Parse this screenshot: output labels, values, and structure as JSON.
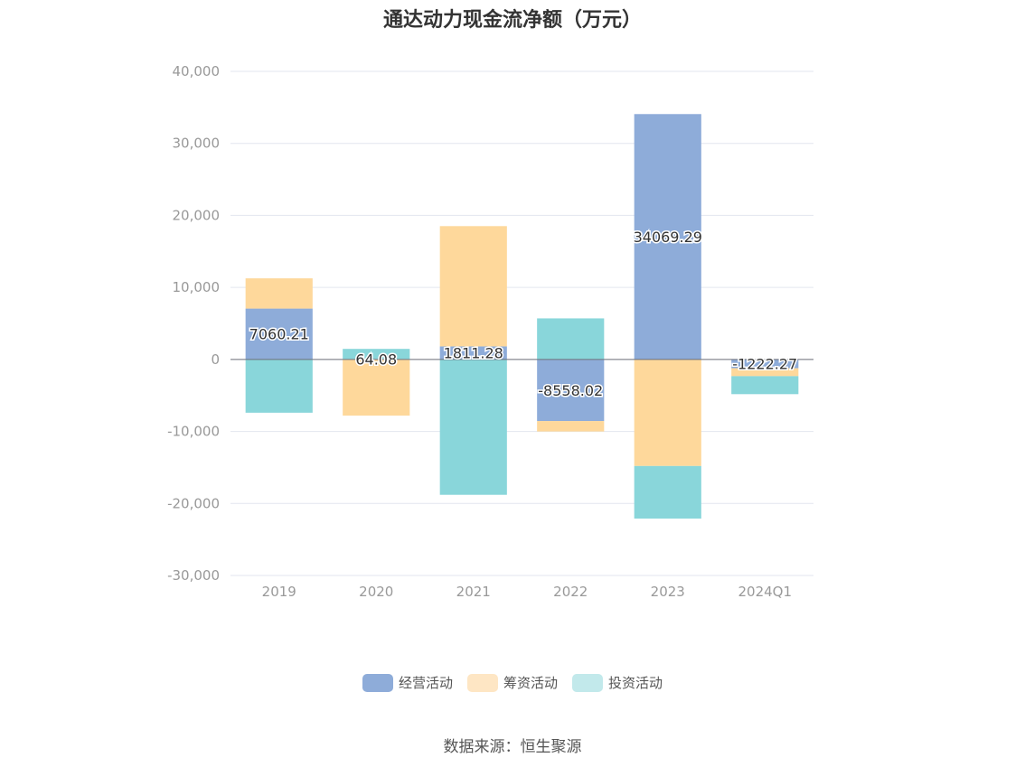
{
  "chart_data": {
    "type": "bar",
    "stacked": true,
    "title": "通达动力现金流净额（万元）",
    "categories": [
      "2019",
      "2020",
      "2021",
      "2022",
      "2023",
      "2024Q1"
    ],
    "series": [
      {
        "name": "经营活动",
        "color": "#8eacd9",
        "values": [
          7060.21,
          64.08,
          1811.28,
          -8558.02,
          34069.29,
          -1222.27
        ]
      },
      {
        "name": "筹资活动",
        "color": "#fed89b",
        "values": [
          4200,
          -7800,
          16700,
          -1450,
          -14800,
          -1100
        ]
      },
      {
        "name": "投资活动",
        "color": "#89d6da",
        "values": [
          -7400,
          1400,
          -18800,
          5700,
          -7300,
          -2500
        ]
      }
    ],
    "data_labels": [
      "7060.21",
      "64.08",
      "1811.28",
      "-8558.02",
      "34069.29",
      "-1222.27"
    ],
    "ylim": [
      -30000,
      40000
    ],
    "yticks": [
      -30000,
      -20000,
      -10000,
      0,
      10000,
      20000,
      30000,
      40000
    ],
    "ytick_labels": [
      "-30,000",
      "-20,000",
      "-10,000",
      "0",
      "10,000",
      "20,000",
      "30,000",
      "40,000"
    ],
    "grid": true,
    "legend_position": "bottom"
  },
  "legend": {
    "items": [
      {
        "label": "经营活动",
        "color": "#8eacd9"
      },
      {
        "label": "筹资活动",
        "color": "#fee6c4"
      },
      {
        "label": "投资活动",
        "color": "#c2e9eb"
      }
    ]
  },
  "source": "数据来源：恒生聚源"
}
